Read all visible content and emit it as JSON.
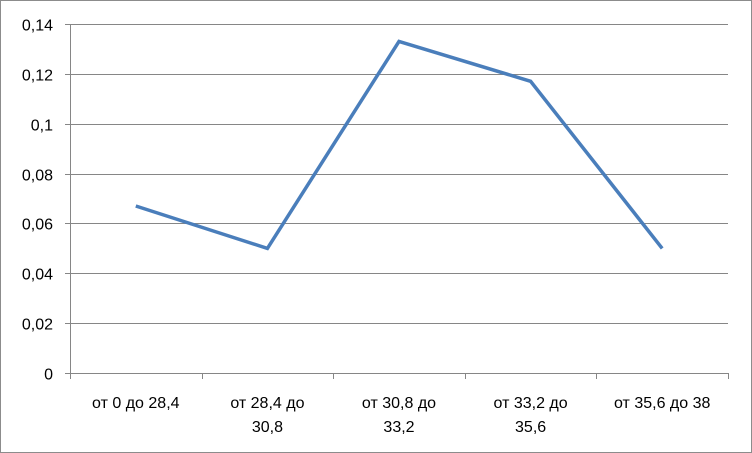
{
  "chart_data": {
    "type": "line",
    "title": "",
    "xlabel": "",
    "ylabel": "",
    "ylim": [
      0,
      0.14
    ],
    "y_ticks": [
      "0",
      "0,02",
      "0,04",
      "0,06",
      "0,08",
      "0,1",
      "0,12",
      "0,14"
    ],
    "categories": [
      [
        "от 0 до 28,4"
      ],
      [
        "от 28,4 до",
        "30,8"
      ],
      [
        "от 30,8 до",
        "33,2"
      ],
      [
        "от 33,2 до",
        "35,6"
      ],
      [
        "от 35,6 до 38"
      ]
    ],
    "series": [
      {
        "values": [
          0.067,
          0.05,
          0.133,
          0.117,
          0.05
        ],
        "color": "#4a7ebb"
      }
    ],
    "grid": true,
    "legend": "none"
  }
}
